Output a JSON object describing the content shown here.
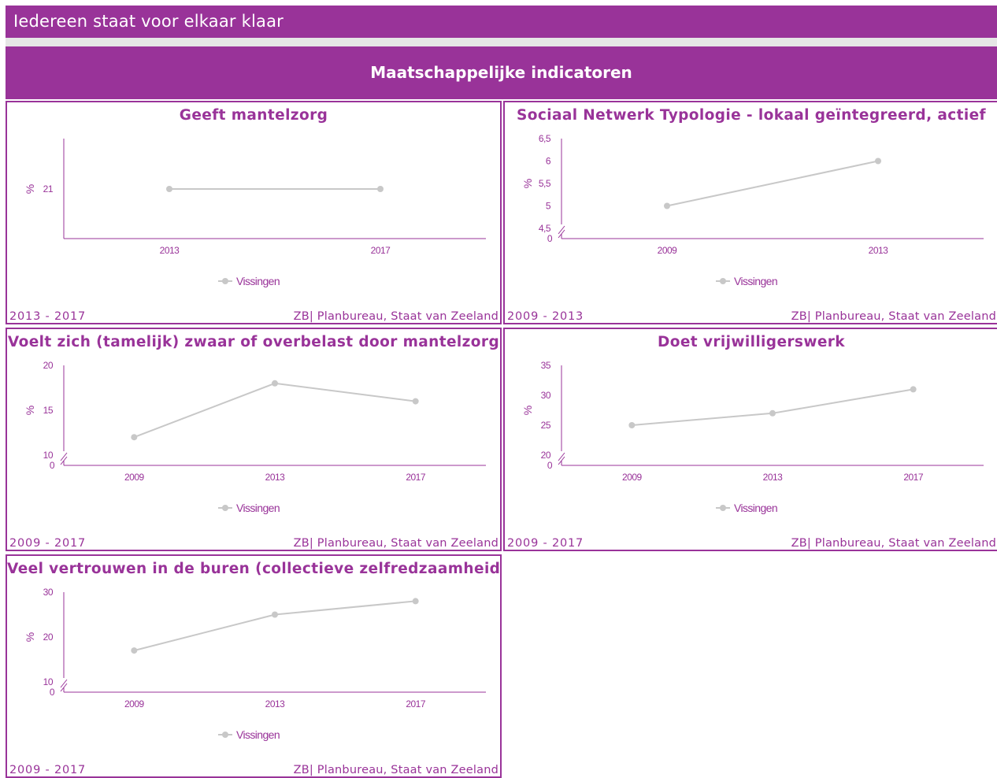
{
  "header": {
    "title": "Iedereen staat voor elkaar klaar"
  },
  "section": {
    "title": "Maatschappelijke indicatoren"
  },
  "colors": {
    "brand": "#993399",
    "series": "#c8c8c8"
  },
  "panels": [
    {
      "title": "Geeft mantelzorg",
      "period": "2013 - 2017",
      "source": "ZB| Planbureau, Staat van Zeeland"
    },
    {
      "title": "Sociaal Netwerk Typologie - lokaal geïntegreerd, actief",
      "period": "2009 - 2013",
      "source": "ZB| Planbureau, Staat van Zeeland"
    },
    {
      "title": "Voelt zich (tamelijk) zwaar of overbelast door mantelzorg",
      "period": "2009 - 2017",
      "source": "ZB| Planbureau, Staat van Zeeland"
    },
    {
      "title": "Doet vrijwilligerswerk",
      "period": "2009 - 2017",
      "source": "ZB| Planbureau, Staat van Zeeland"
    },
    {
      "title": "Veel vertrouwen in de buren (collectieve zelfredzaamheid)",
      "period": "2009 - 2017",
      "source": "ZB| Planbureau, Staat van Zeeland"
    }
  ],
  "chart_data": [
    {
      "type": "line",
      "title": "Geeft mantelzorg",
      "ylabel": "%",
      "categories": [
        "2013",
        "2017"
      ],
      "series": [
        {
          "name": "Vissingen",
          "values": [
            21,
            21
          ]
        }
      ],
      "yticks": [
        "21"
      ],
      "ytick_values": [
        21
      ],
      "ylim": [
        20,
        22
      ],
      "axis_break": false,
      "legend": "bottom"
    },
    {
      "type": "line",
      "title": "Sociaal Netwerk Typologie - lokaal geïntegreerd, actief",
      "ylabel": "%",
      "categories": [
        "2009",
        "2013"
      ],
      "series": [
        {
          "name": "Vissingen",
          "values": [
            5,
            6
          ]
        }
      ],
      "yticks": [
        "4,5",
        "5",
        "5,5",
        "6",
        "6,5"
      ],
      "ytick_values": [
        4.5,
        5,
        5.5,
        6,
        6.5
      ],
      "ylim": [
        4.5,
        6.5
      ],
      "axis_break": true,
      "legend": "bottom"
    },
    {
      "type": "line",
      "title": "Voelt zich (tamelijk) zwaar of overbelast door mantelzorg",
      "ylabel": "%",
      "categories": [
        "2009",
        "2013",
        "2017"
      ],
      "series": [
        {
          "name": "Vissingen",
          "values": [
            12,
            18,
            16
          ]
        }
      ],
      "yticks": [
        "10",
        "15",
        "20"
      ],
      "ytick_values": [
        10,
        15,
        20
      ],
      "ylim": [
        10,
        20
      ],
      "axis_break": true,
      "legend": "bottom"
    },
    {
      "type": "line",
      "title": "Doet vrijwilligerswerk",
      "ylabel": "%",
      "categories": [
        "2009",
        "2013",
        "2017"
      ],
      "series": [
        {
          "name": "Vissingen",
          "values": [
            25,
            27,
            31
          ]
        }
      ],
      "yticks": [
        "20",
        "25",
        "30",
        "35"
      ],
      "ytick_values": [
        20,
        25,
        30,
        35
      ],
      "ylim": [
        20,
        35
      ],
      "axis_break": true,
      "legend": "bottom"
    },
    {
      "type": "line",
      "title": "Veel vertrouwen in de buren (collectieve zelfredzaamheid)",
      "ylabel": "%",
      "categories": [
        "2009",
        "2013",
        "2017"
      ],
      "series": [
        {
          "name": "Vissingen",
          "values": [
            17,
            25,
            28
          ]
        }
      ],
      "yticks": [
        "10",
        "20",
        "30"
      ],
      "ytick_values": [
        10,
        20,
        30
      ],
      "ylim": [
        10,
        30
      ],
      "axis_break": true,
      "legend": "bottom"
    }
  ]
}
